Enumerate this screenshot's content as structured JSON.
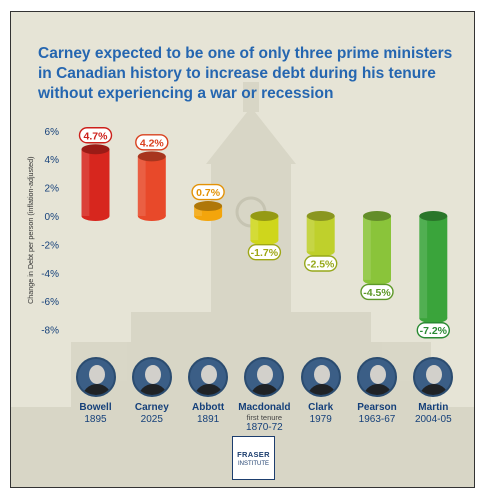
{
  "title": "Carney expected to be one of only three prime ministers in Canadian history to increase debt during his tenure without experiencing a war or recession",
  "colors": {
    "title": "#2566b0",
    "labels": "#15407a",
    "background": "#e6e4d6"
  },
  "chart_data": {
    "type": "bar",
    "title": "Carney expected to be one of only three prime ministers in Canadian history to increase debt during his tenure without experiencing a war or recession",
    "xlabel": "",
    "ylabel": "Change in Debt per person (inflation-adjusted)",
    "ylim": [
      -8,
      6
    ],
    "yticks": [
      "6%",
      "4%",
      "2%",
      "0%",
      "-2%",
      "-4%",
      "-6%",
      "-8%"
    ],
    "ytick_values": [
      6,
      4,
      2,
      0,
      -2,
      -4,
      -6,
      -8
    ],
    "categories": [
      "Bowell",
      "Carney",
      "Abbott",
      "Macdonald",
      "Clark",
      "Pearson",
      "Martin"
    ],
    "values": [
      4.7,
      4.2,
      0.7,
      -1.7,
      -2.5,
      -4.5,
      -7.2
    ],
    "value_labels": [
      "4.7%",
      "4.2%",
      "0.7%",
      "-1.7%",
      "-2.5%",
      "-4.5%",
      "-7.2%"
    ],
    "bar_colors": [
      "#d7261e",
      "#e8492a",
      "#f3a50c",
      "#cfd61c",
      "#bfd02c",
      "#8ac43a",
      "#3aa43b"
    ],
    "label_colors": [
      "#cc1f1a",
      "#d9411f",
      "#e39206",
      "#9fa716",
      "#96a81a",
      "#5d9828",
      "#2a8a33"
    ],
    "grid": false
  },
  "prime_ministers": [
    {
      "name": "Bowell",
      "note": "",
      "years": "1895"
    },
    {
      "name": "Carney",
      "note": "",
      "years": "2025"
    },
    {
      "name": "Abbott",
      "note": "",
      "years": "1891"
    },
    {
      "name": "Macdonald",
      "note": "first tenure",
      "years": "1870-72"
    },
    {
      "name": "Clark",
      "note": "",
      "years": "1979"
    },
    {
      "name": "Pearson",
      "note": "",
      "years": "1963-67"
    },
    {
      "name": "Martin",
      "note": "",
      "years": "2004-05"
    }
  ],
  "logo": {
    "line1": "FRASER",
    "line2": "INSTITUTE"
  }
}
